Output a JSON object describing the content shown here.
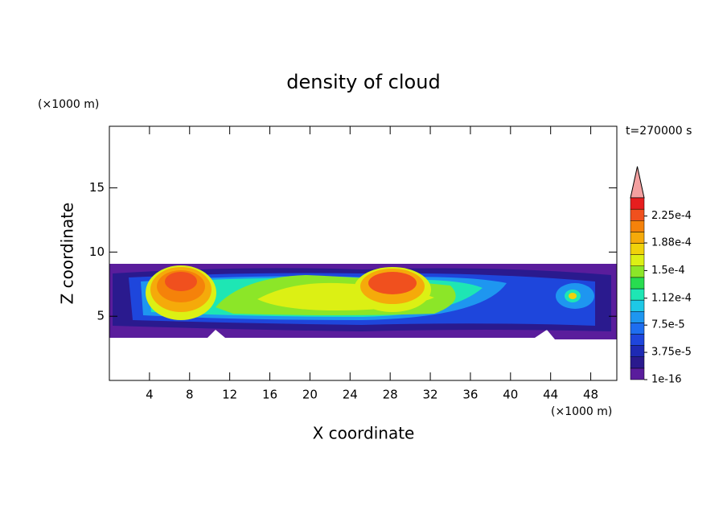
{
  "chart_data": {
    "type": "contour",
    "title": "density of cloud",
    "x_label": "X coordinate",
    "y_label": "Z coordinate",
    "x_unit": "(×1000 m)",
    "y_unit": "(×1000 m)",
    "time_label": "t=270000 s",
    "xlim": [
      0,
      50.6
    ],
    "ylim": [
      0,
      19.8
    ],
    "xticks": [
      4,
      8,
      12,
      16,
      20,
      24,
      28,
      32,
      36,
      40,
      44,
      48
    ],
    "yticks": [
      5,
      10,
      15
    ],
    "colorbar": {
      "lim": [
        1e-16,
        0.00025
      ],
      "ticks": [
        {
          "value": 1e-16,
          "label": "1e-16"
        },
        {
          "value": 3.75e-05,
          "label": "3.75e-5"
        },
        {
          "value": 7.5e-05,
          "label": "7.5e-5"
        },
        {
          "value": 0.000112,
          "label": "1.12e-4"
        },
        {
          "value": 0.00015,
          "label": "1.5e-4"
        },
        {
          "value": 0.000188,
          "label": "1.88e-4"
        },
        {
          "value": 0.000225,
          "label": "2.25e-4"
        }
      ],
      "colors": [
        "#5a1d9c",
        "#2a1a8e",
        "#1e2ab4",
        "#1e46dc",
        "#1e6ef0",
        "#1e96f0",
        "#1ec8e6",
        "#1ee6b4",
        "#28dc50",
        "#8ce628",
        "#dcf014",
        "#f0d20a",
        "#f5aa0a",
        "#f5820a",
        "#f0501e",
        "#e61e1e"
      ],
      "extend_color": "#f4a0a0"
    }
  }
}
